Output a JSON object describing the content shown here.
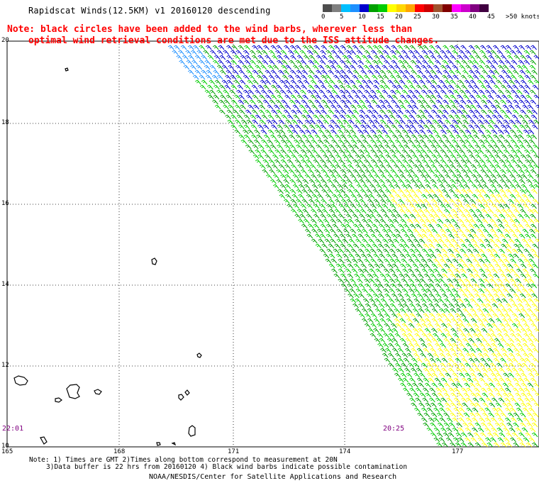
{
  "header": {
    "title": "Rapidscat Winds(12.5KM) v1 20160120 descending",
    "note_line1": "Note: black circles have been added to the wind barbs, wherever less than",
    "note_line2": "optimal wind retrieval conditions are met due to the ISS attitude changes."
  },
  "legend": {
    "colors": [
      "#4d4d4d",
      "#808080",
      "#00bfff",
      "#1e90ff",
      "#0000cd",
      "#00a000",
      "#00cc00",
      "#ffff00",
      "#ffd700",
      "#ffa500",
      "#ff0000",
      "#cc0000",
      "#a0522d",
      "#800000",
      "#ff00ff",
      "#cc00cc",
      "#800080",
      "#400040"
    ],
    "labels": [
      "0",
      "5",
      "10",
      "15",
      "20",
      "25",
      "30",
      "35",
      "40",
      "45",
      ">50 knots"
    ]
  },
  "axes": {
    "lat_labels": [
      "20",
      "18",
      "16",
      "14",
      "12",
      "10"
    ],
    "lon_labels": [
      "165",
      "168",
      "171",
      "174",
      "177"
    ]
  },
  "times": {
    "left": "22:01",
    "right": "20:25"
  },
  "footer": {
    "line1": "Note: 1) Times are GMT 2)Times along bottom correspond to measurement at 20N",
    "line2": "3)Data buffer is 22 hrs from 20160120 4) Black wind barbs indicate possible contamination",
    "credit": "NOAA/NESDIS/Center for Satellite Applications and Research"
  }
}
